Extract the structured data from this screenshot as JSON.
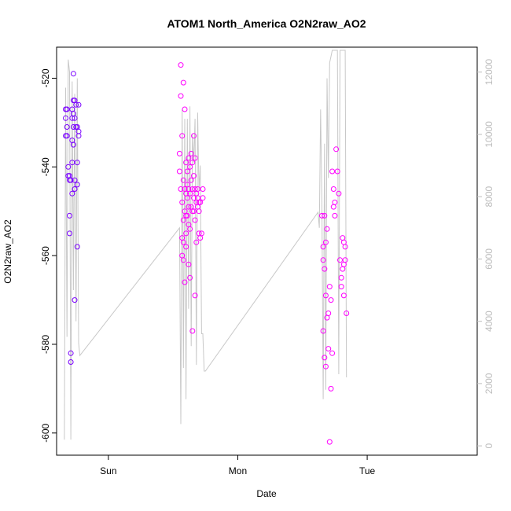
{
  "chart_data": {
    "type": "scatter",
    "title": "ATOM1 North_America O2N2raw_AO2",
    "xlabel": "Date",
    "ylabel": "O2N2raw_AO2",
    "x_unit": "days",
    "xlim": [
      -0.4,
      2.85
    ],
    "ylim": [
      -605,
      -513
    ],
    "x_ticks": [
      {
        "value": 0,
        "label": "Sun"
      },
      {
        "value": 1,
        "label": "Mon"
      },
      {
        "value": 2,
        "label": "Tue"
      }
    ],
    "y_ticks": [
      -600,
      -580,
      -560,
      -540,
      -520
    ],
    "y2lim": [
      -300,
      12800
    ],
    "y2_ticks": [
      0,
      2000,
      4000,
      6000,
      8000,
      10000,
      12000
    ],
    "series": [
      {
        "color": "#7a00ff",
        "marker": "circle",
        "x": [
          -0.33,
          -0.33,
          -0.33,
          -0.32,
          -0.32,
          -0.32,
          -0.31,
          -0.31,
          -0.3,
          -0.3,
          -0.3,
          -0.3,
          -0.29,
          -0.29,
          -0.29,
          -0.28,
          -0.28,
          -0.28,
          -0.28,
          -0.28,
          -0.27,
          -0.27,
          -0.27,
          -0.27,
          -0.27,
          -0.26,
          -0.26,
          -0.26,
          -0.26,
          -0.26,
          -0.25,
          -0.25,
          -0.24,
          -0.24,
          -0.24,
          -0.24,
          -0.23,
          -0.23,
          -0.23
        ],
        "y": [
          -527,
          -529,
          -533,
          -527,
          -531,
          -533,
          -540,
          -542,
          -542,
          -543,
          -551,
          -555,
          -582,
          -584,
          -543,
          -529,
          -534,
          -539,
          -546,
          -527,
          -525,
          -528,
          -531,
          -535,
          -519,
          -525,
          -529,
          -545,
          -570,
          -543,
          -526,
          -531,
          -539,
          -558,
          -544,
          -531,
          -526,
          -533,
          -532
        ]
      },
      {
        "color": "#ff00ff",
        "marker": "circle",
        "x": [
          0.55,
          0.55,
          0.56,
          0.56,
          0.56,
          0.57,
          0.57,
          0.57,
          0.57,
          0.58,
          0.58,
          0.58,
          0.58,
          0.58,
          0.59,
          0.59,
          0.59,
          0.59,
          0.6,
          0.6,
          0.6,
          0.6,
          0.6,
          0.61,
          0.61,
          0.61,
          0.61,
          0.62,
          0.62,
          0.62,
          0.62,
          0.62,
          0.63,
          0.63,
          0.63,
          0.63,
          0.64,
          0.64,
          0.64,
          0.65,
          0.65,
          0.65,
          0.65,
          0.66,
          0.66,
          0.66,
          0.66,
          0.67,
          0.67,
          0.67,
          0.67,
          0.68,
          0.68,
          0.68,
          0.69,
          0.69,
          0.69,
          0.7,
          0.7,
          0.7,
          0.71,
          0.71,
          0.72,
          0.73,
          0.73,
          1.65,
          1.66,
          1.66,
          1.66,
          1.67,
          1.67,
          1.67,
          1.68,
          1.68,
          1.68,
          1.69,
          1.69,
          1.7,
          1.7,
          1.71,
          1.71,
          1.72,
          1.72,
          1.73,
          1.73,
          1.74,
          1.74,
          1.75,
          1.75,
          1.76,
          1.77,
          1.78,
          1.79,
          1.8,
          1.8,
          1.81,
          1.81,
          1.82,
          1.82,
          1.82,
          1.83,
          1.83,
          1.84
        ],
        "y": [
          -537,
          -541,
          -517,
          -524,
          -545,
          -533,
          -548,
          -556,
          -560,
          -521,
          -543,
          -552,
          -557,
          -561,
          -527,
          -545,
          -550,
          -566,
          -539,
          -546,
          -551,
          -555,
          -558,
          -541,
          -544,
          -547,
          -551,
          -538,
          -545,
          -549,
          -553,
          -562,
          -540,
          -546,
          -554,
          -565,
          -537,
          -543,
          -549,
          -539,
          -545,
          -550,
          -577,
          -533,
          -542,
          -547,
          -550,
          -538,
          -545,
          -552,
          -569,
          -546,
          -548,
          -557,
          -545,
          -547,
          -549,
          -548,
          -550,
          -555,
          -556,
          -548,
          -555,
          -547,
          -545,
          -551,
          -558,
          -561,
          -577,
          -551,
          -563,
          -583,
          -557,
          -569,
          -585,
          -554,
          -574,
          -573,
          -581,
          -602,
          -567,
          -570,
          -590,
          -541,
          -582,
          -545,
          -549,
          -548,
          -551,
          -536,
          -541,
          -546,
          -561,
          -565,
          -567,
          -556,
          -563,
          -557,
          -562,
          -569,
          -558,
          -561,
          -573
        ]
      }
    ],
    "secondary_series": {
      "color": "#c8c8c8",
      "type": "line",
      "x": [
        -0.34,
        -0.33,
        -0.32,
        -0.31,
        -0.3,
        -0.29,
        -0.28,
        -0.27,
        -0.26,
        -0.25,
        -0.24,
        -0.23,
        -0.22,
        0.55,
        0.56,
        0.57,
        0.58,
        0.59,
        0.6,
        0.61,
        0.62,
        0.63,
        0.64,
        0.65,
        0.66,
        0.67,
        0.68,
        0.69,
        0.7,
        0.71,
        0.72,
        0.73,
        0.74,
        0.75,
        1.62,
        1.63,
        1.64,
        1.65,
        1.66,
        1.67,
        1.68,
        1.69,
        1.7,
        1.71,
        1.72,
        1.73,
        1.74,
        1.75,
        1.76,
        1.77,
        1.78,
        1.79,
        1.8,
        1.81,
        1.82,
        1.83,
        1.84
      ],
      "y": [
        200,
        11500,
        3500,
        12400,
        12000,
        200,
        11700,
        5000,
        11300,
        4000,
        11800,
        3300,
        2900,
        7000,
        700,
        10800,
        2500,
        10500,
        1500,
        10500,
        4400,
        10900,
        3200,
        10000,
        9100,
        10500,
        2600,
        10700,
        8200,
        9000,
        3600,
        3600,
        2400,
        2400,
        7500,
        7000,
        10800,
        7700,
        1500,
        9700,
        1800,
        11800,
        8600,
        12300,
        12500,
        12700,
        12700,
        12700,
        12700,
        12700,
        2300,
        12700,
        12700,
        12700,
        12700,
        12700,
        2200
      ]
    }
  }
}
